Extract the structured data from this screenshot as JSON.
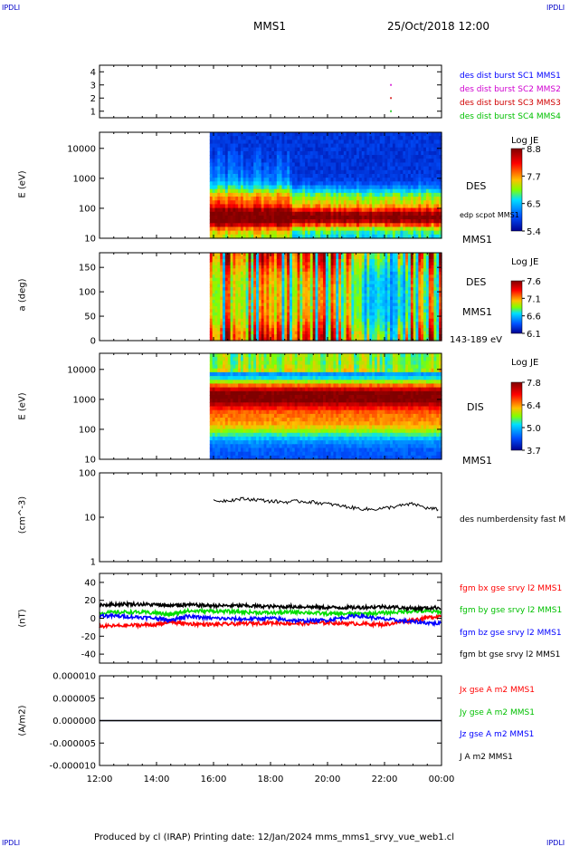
{
  "header": {
    "corner_left": "IPDLI",
    "corner_right": "IPDLI",
    "spacecraft": "MMS1",
    "datetime": "25/Oct/2018 12:00"
  },
  "footer": {
    "text": "Produced by cl (IRAP)   Printing date: 12/Jan/2024   mms_mms1_srvy_vue_web1.cl",
    "corner_left": "IPDLI",
    "corner_right": "IPDLI"
  },
  "colors": {
    "mms1": "#0000ff",
    "mms2": "#d000d0",
    "mms3": "#d00000",
    "mms4": "#00c000",
    "bx": "#ff0000",
    "by": "#00dd00",
    "bz": "#0000ff",
    "bt": "#000000"
  },
  "chart_data": [
    {
      "type": "scatter",
      "panel": "burst",
      "ylim": [
        0.5,
        4.5
      ],
      "yticks": [
        "1",
        "2",
        "3",
        "4"
      ],
      "legend": [
        "des dist burst SC1 MMS1",
        "des dist burst SC2 MMS2",
        "des dist burst SC3 MMS3",
        "des dist burst SC4 MMS4"
      ],
      "points": [
        {
          "x": "22:12",
          "y": 3,
          "sc": 2
        },
        {
          "x": "22:12",
          "y": 2,
          "sc": 3
        },
        {
          "x": "22:12",
          "y": 1,
          "sc": 4
        }
      ]
    },
    {
      "type": "heatmap",
      "panel": "des_energy",
      "ylabel": "E (eV)",
      "yscale": "log",
      "yticks": [
        "10",
        "100",
        "1000",
        "10000"
      ],
      "species": "DES",
      "side_labels": [
        "edp scpot MMS1",
        "MMS1"
      ],
      "colorbar": {
        "title": "Log JE",
        "ticks": [
          "8.8",
          "7.7",
          "6.5",
          "5.4"
        ]
      },
      "data_start": "15:52"
    },
    {
      "type": "heatmap",
      "panel": "des_pitch",
      "ylabel": "a (deg)",
      "ylim": [
        0,
        180
      ],
      "yticks": [
        "0",
        "50",
        "100",
        "150"
      ],
      "species": "DES",
      "side_labels": [
        "MMS1",
        "143-189 eV"
      ],
      "colorbar": {
        "title": "Log JE",
        "ticks": [
          "7.6",
          "7.1",
          "6.6",
          "6.1"
        ]
      },
      "data_start": "15:52"
    },
    {
      "type": "heatmap",
      "panel": "dis_energy",
      "ylabel": "E (eV)",
      "yscale": "log",
      "yticks": [
        "10",
        "100",
        "1000",
        "10000"
      ],
      "species": "DIS",
      "side_labels": [
        "MMS1"
      ],
      "colorbar": {
        "title": "Log JE",
        "ticks": [
          "7.8",
          "6.4",
          "5.0",
          "3.7"
        ]
      },
      "data_start": "15:52"
    },
    {
      "type": "line",
      "panel": "density",
      "ylabel": "(cm^-3)",
      "yscale": "log",
      "ylim": [
        1,
        100
      ],
      "yticks": [
        "1",
        "10",
        "100"
      ],
      "series": [
        {
          "name": "des numberdensity fast M",
          "x": [
            "16:00",
            "16:30",
            "17:00",
            "17:30",
            "18:00",
            "18:30",
            "19:00",
            "19:30",
            "20:00",
            "20:30",
            "21:00",
            "21:30",
            "22:00",
            "22:30",
            "23:00",
            "23:30",
            "23:55"
          ],
          "values": [
            23,
            24,
            26,
            25,
            23,
            22,
            23,
            22,
            20,
            18,
            16,
            15,
            16,
            18,
            20,
            16,
            15
          ]
        }
      ]
    },
    {
      "type": "line",
      "panel": "fgm",
      "ylabel": "(nT)",
      "ylim": [
        -50,
        50
      ],
      "yticks": [
        "-40",
        "-20",
        "0",
        "20",
        "40"
      ],
      "series": [
        {
          "name": "fgm bx gse srvy l2 MMS1",
          "x": [
            "12:00",
            "13:00",
            "14:00",
            "14:30",
            "15:00",
            "16:00",
            "17:00",
            "18:00",
            "19:00",
            "20:00",
            "21:00",
            "22:00",
            "23:00",
            "00:00"
          ],
          "values": [
            -9,
            -8,
            -7,
            -4,
            -6,
            -7,
            -6,
            -5,
            -6,
            -5,
            -6,
            -7,
            -2,
            3
          ]
        },
        {
          "name": "fgm by gse srvy l2 MMS1",
          "x": [
            "12:00",
            "13:00",
            "14:00",
            "14:30",
            "15:00",
            "16:00",
            "17:00",
            "18:00",
            "19:00",
            "20:00",
            "21:00",
            "22:00",
            "23:00",
            "00:00"
          ],
          "values": [
            6,
            7,
            6,
            4,
            8,
            8,
            7,
            6,
            7,
            5,
            5,
            6,
            8,
            7
          ]
        },
        {
          "name": "fgm bz gse srvy l2 MMS1",
          "x": [
            "12:00",
            "13:00",
            "14:00",
            "14:30",
            "15:00",
            "16:00",
            "17:00",
            "18:00",
            "19:00",
            "20:00",
            "21:00",
            "22:00",
            "23:00",
            "00:00"
          ],
          "values": [
            3,
            2,
            0,
            -2,
            2,
            0,
            -1,
            0,
            -3,
            -2,
            3,
            -1,
            -4,
            -6
          ]
        },
        {
          "name": "fgm bt gse srvy l2 MMS1",
          "x": [
            "12:00",
            "13:00",
            "14:00",
            "14:30",
            "15:00",
            "16:00",
            "17:00",
            "18:00",
            "19:00",
            "20:00",
            "21:00",
            "22:00",
            "23:00",
            "00:00"
          ],
          "values": [
            15,
            16,
            15,
            14,
            15,
            14,
            14,
            13,
            13,
            12,
            12,
            13,
            11,
            12
          ]
        }
      ]
    },
    {
      "type": "line",
      "panel": "current",
      "ylabel": "(A/m2)",
      "ylim": [
        -1e-05,
        1e-05
      ],
      "yticks": [
        "-0.000010",
        "-0.000005",
        "0.000000",
        "0.000005",
        "0.000010"
      ],
      "series": [
        {
          "name": "Jx gse A m2 MMS1",
          "x": [
            "12:00",
            "00:00"
          ],
          "values": [
            0,
            0
          ]
        },
        {
          "name": "Jy gse A m2 MMS1",
          "x": [
            "12:00",
            "00:00"
          ],
          "values": [
            0,
            0
          ]
        },
        {
          "name": "Jz gse A m2 MMS1",
          "x": [
            "12:00",
            "00:00"
          ],
          "values": [
            0,
            0
          ]
        },
        {
          "name": "J A m2 MMS1",
          "x": [
            "12:00",
            "00:00"
          ],
          "values": [
            0,
            0
          ]
        }
      ]
    }
  ],
  "xaxis": {
    "ticks": [
      "12:00",
      "14:00",
      "16:00",
      "18:00",
      "20:00",
      "22:00",
      "00:00"
    ],
    "range": [
      "12:00",
      "00:00"
    ]
  }
}
